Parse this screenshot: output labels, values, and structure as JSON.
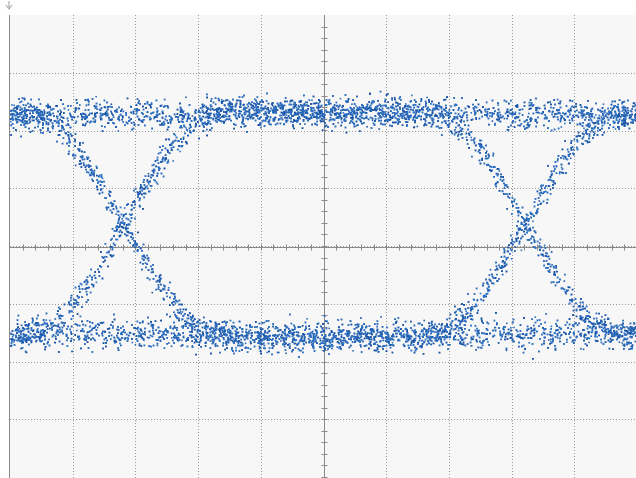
{
  "window": {
    "caption": "",
    "marker_icon": "trigger-arrow-icon"
  },
  "display": {
    "background": "#f7f7f7",
    "grid_color": "#9a9a9a",
    "axis_color": "#8a8a8a",
    "grid_divisions": {
      "horizontal": 10,
      "vertical": 8
    },
    "grid_style": "dotted",
    "center_axis_ticks": true
  },
  "waveform": {
    "type": "eye-diagram",
    "trace_color": "#2f6fbf",
    "trace_color_dark": "#1d57a8",
    "levels": {
      "high": 2.3,
      "low": -1.5,
      "unit": "div"
    },
    "noise_spread": 0.38,
    "crossings_at_div": [
      1.8,
      8.2
    ],
    "unit_interval_div": 6.4
  }
}
